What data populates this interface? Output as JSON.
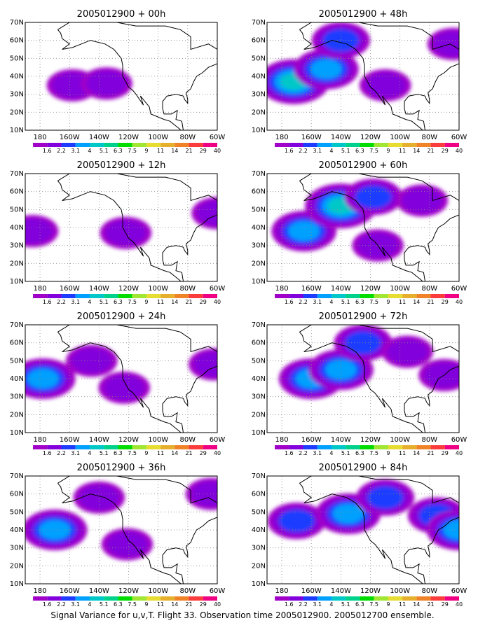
{
  "caption": "Signal Variance for u,v,T. Flight 33. Observation time 2005012900. 2005012700 ensemble.",
  "colorbar": {
    "labels": [
      "1.6",
      "2.2",
      "3.1",
      "4",
      "5.1",
      "6.3",
      "7.5",
      "9",
      "11",
      "14",
      "21",
      "29",
      "40"
    ],
    "colors": [
      "#a000c8",
      "#8200dc",
      "#1e3cff",
      "#00a0ff",
      "#00c8c8",
      "#00d28c",
      "#00dc00",
      "#a0e632",
      "#e6dc32",
      "#e6af2d",
      "#f08228",
      "#fa3c3c",
      "#f00082"
    ]
  },
  "x_ticks": [
    "180",
    "160W",
    "140W",
    "120W",
    "100W",
    "80W",
    "60W"
  ],
  "y_ticks": [
    "10N",
    "20N",
    "30N",
    "40N",
    "50N",
    "60N",
    "70N"
  ],
  "chart_data": [
    {
      "type": "heatmap",
      "title": "2005012900 + 00h",
      "xlim": [
        -190,
        -60
      ],
      "ylim": [
        10,
        70
      ],
      "blobs": [
        {
          "lon": -158,
          "lat": 35,
          "level": 1
        },
        {
          "lon": -135,
          "lat": 36,
          "level": 1
        }
      ]
    },
    {
      "type": "heatmap",
      "title": "2005012900 + 12h",
      "xlim": [
        -190,
        -60
      ],
      "ylim": [
        10,
        70
      ],
      "blobs": [
        {
          "lon": -185,
          "lat": 38,
          "level": 1
        },
        {
          "lon": -122,
          "lat": 37,
          "level": 1
        },
        {
          "lon": -60,
          "lat": 48,
          "level": 1
        }
      ]
    },
    {
      "type": "heatmap",
      "title": "2005012900 + 24h",
      "xlim": [
        -190,
        -60
      ],
      "ylim": [
        10,
        70
      ],
      "blobs": [
        {
          "lon": -178,
          "lat": 40,
          "level": 3
        },
        {
          "lon": -145,
          "lat": 50,
          "level": 1
        },
        {
          "lon": -123,
          "lat": 35,
          "level": 1
        },
        {
          "lon": -62,
          "lat": 48,
          "level": 1
        }
      ]
    },
    {
      "type": "heatmap",
      "title": "2005012900 + 36h",
      "xlim": [
        -190,
        -60
      ],
      "ylim": [
        10,
        70
      ],
      "blobs": [
        {
          "lon": -170,
          "lat": 40,
          "level": 3
        },
        {
          "lon": -140,
          "lat": 58,
          "level": 1
        },
        {
          "lon": -121,
          "lat": 32,
          "level": 1
        },
        {
          "lon": -64,
          "lat": 60,
          "level": 1
        }
      ]
    },
    {
      "type": "heatmap",
      "title": "2005012900 + 48h",
      "xlim": [
        -190,
        -60
      ],
      "ylim": [
        10,
        70
      ],
      "blobs": [
        {
          "lon": -172,
          "lat": 37,
          "level": 4
        },
        {
          "lon": -150,
          "lat": 44,
          "level": 3
        },
        {
          "lon": -140,
          "lat": 60,
          "level": 2
        },
        {
          "lon": -110,
          "lat": 35,
          "level": 1
        },
        {
          "lon": -64,
          "lat": 58,
          "level": 1
        }
      ]
    },
    {
      "type": "heatmap",
      "title": "2005012900 + 60h",
      "xlim": [
        -190,
        -60
      ],
      "ylim": [
        10,
        70
      ],
      "blobs": [
        {
          "lon": -165,
          "lat": 38,
          "level": 3
        },
        {
          "lon": -140,
          "lat": 52,
          "level": 4
        },
        {
          "lon": -118,
          "lat": 57,
          "level": 2
        },
        {
          "lon": -85,
          "lat": 55,
          "level": 1
        },
        {
          "lon": -115,
          "lat": 30,
          "level": 1
        }
      ]
    },
    {
      "type": "heatmap",
      "title": "2005012900 + 72h",
      "xlim": [
        -190,
        -60
      ],
      "ylim": [
        10,
        70
      ],
      "blobs": [
        {
          "lon": -160,
          "lat": 40,
          "level": 3
        },
        {
          "lon": -140,
          "lat": 45,
          "level": 3
        },
        {
          "lon": -125,
          "lat": 60,
          "level": 2
        },
        {
          "lon": -95,
          "lat": 55,
          "level": 1
        },
        {
          "lon": -70,
          "lat": 42,
          "level": 1
        }
      ]
    },
    {
      "type": "heatmap",
      "title": "2005012900 + 84h",
      "xlim": [
        -190,
        -60
      ],
      "ylim": [
        10,
        70
      ],
      "blobs": [
        {
          "lon": -170,
          "lat": 45,
          "level": 2
        },
        {
          "lon": -135,
          "lat": 49,
          "level": 3
        },
        {
          "lon": -110,
          "lat": 58,
          "level": 2
        },
        {
          "lon": -75,
          "lat": 48,
          "level": 2
        },
        {
          "lon": -60,
          "lat": 40,
          "level": 3
        }
      ]
    }
  ]
}
